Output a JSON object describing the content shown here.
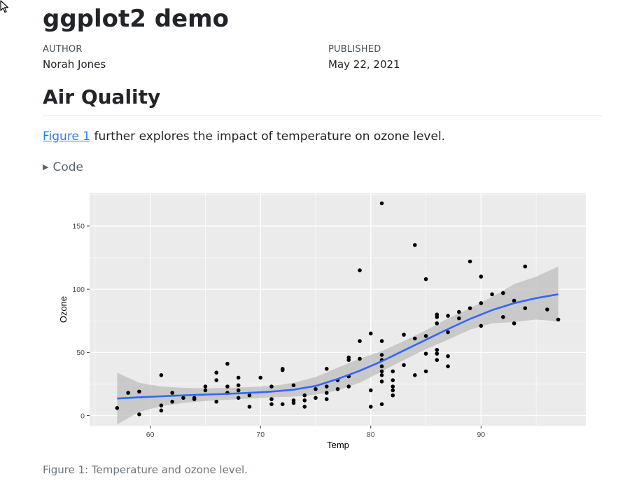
{
  "header": {
    "title": "ggplot2 demo",
    "author_label": "AUTHOR",
    "author": "Norah Jones",
    "published_label": "PUBLISHED",
    "published": "May 22, 2021"
  },
  "section": {
    "heading": "Air Quality",
    "figure_link": "Figure 1",
    "paragraph_rest": " further explores the impact of temperature on ozone level.",
    "code_toggle": "Code"
  },
  "figure": {
    "caption": "Figure 1: Temperature and ozone level."
  },
  "colors": {
    "panel_bg": "#EBEBEB",
    "grid": "#FFFFFF",
    "points": "#000000",
    "smooth_line": "#3366FF",
    "ribbon": "#BDBDBD",
    "link": "#2780E3"
  },
  "chart_data": {
    "type": "scatter",
    "title": "",
    "xlabel": "Temp",
    "ylabel": "Ozone",
    "xlim": [
      54.5,
      99.5
    ],
    "ylim": [
      -8,
      176
    ],
    "xticks": [
      60,
      70,
      80,
      90
    ],
    "yticks": [
      0,
      50,
      100,
      150
    ],
    "grid": true,
    "legend": "none",
    "points": [
      {
        "x": 57,
        "y": 6
      },
      {
        "x": 58,
        "y": 18
      },
      {
        "x": 59,
        "y": 1
      },
      {
        "x": 59,
        "y": 19
      },
      {
        "x": 61,
        "y": 32
      },
      {
        "x": 61,
        "y": 8
      },
      {
        "x": 61,
        "y": 4
      },
      {
        "x": 62,
        "y": 11
      },
      {
        "x": 62,
        "y": 18
      },
      {
        "x": 63,
        "y": 14
      },
      {
        "x": 64,
        "y": 14
      },
      {
        "x": 64,
        "y": 13
      },
      {
        "x": 65,
        "y": 20
      },
      {
        "x": 65,
        "y": 23
      },
      {
        "x": 66,
        "y": 34
      },
      {
        "x": 66,
        "y": 28
      },
      {
        "x": 66,
        "y": 11
      },
      {
        "x": 67,
        "y": 41
      },
      {
        "x": 67,
        "y": 23
      },
      {
        "x": 67,
        "y": 18
      },
      {
        "x": 68,
        "y": 30
      },
      {
        "x": 68,
        "y": 24
      },
      {
        "x": 68,
        "y": 20
      },
      {
        "x": 68,
        "y": 14
      },
      {
        "x": 69,
        "y": 16
      },
      {
        "x": 69,
        "y": 7
      },
      {
        "x": 70,
        "y": 30
      },
      {
        "x": 71,
        "y": 23
      },
      {
        "x": 71,
        "y": 13
      },
      {
        "x": 71,
        "y": 9
      },
      {
        "x": 72,
        "y": 37
      },
      {
        "x": 72,
        "y": 36
      },
      {
        "x": 72,
        "y": 9
      },
      {
        "x": 73,
        "y": 24
      },
      {
        "x": 73,
        "y": 12
      },
      {
        "x": 73,
        "y": 10
      },
      {
        "x": 74,
        "y": 16
      },
      {
        "x": 74,
        "y": 12
      },
      {
        "x": 74,
        "y": 7
      },
      {
        "x": 75,
        "y": 21
      },
      {
        "x": 75,
        "y": 14
      },
      {
        "x": 76,
        "y": 37
      },
      {
        "x": 76,
        "y": 23
      },
      {
        "x": 76,
        "y": 18
      },
      {
        "x": 76,
        "y": 13
      },
      {
        "x": 77,
        "y": 28
      },
      {
        "x": 77,
        "y": 21
      },
      {
        "x": 78,
        "y": 46
      },
      {
        "x": 78,
        "y": 44
      },
      {
        "x": 78,
        "y": 31
      },
      {
        "x": 78,
        "y": 23
      },
      {
        "x": 79,
        "y": 115
      },
      {
        "x": 79,
        "y": 59
      },
      {
        "x": 79,
        "y": 45
      },
      {
        "x": 80,
        "y": 65
      },
      {
        "x": 80,
        "y": 20
      },
      {
        "x": 80,
        "y": 7
      },
      {
        "x": 81,
        "y": 168
      },
      {
        "x": 81,
        "y": 59
      },
      {
        "x": 81,
        "y": 48
      },
      {
        "x": 81,
        "y": 44
      },
      {
        "x": 81,
        "y": 39
      },
      {
        "x": 81,
        "y": 35
      },
      {
        "x": 81,
        "y": 32
      },
      {
        "x": 81,
        "y": 27
      },
      {
        "x": 81,
        "y": 9
      },
      {
        "x": 82,
        "y": 35
      },
      {
        "x": 82,
        "y": 28
      },
      {
        "x": 82,
        "y": 23
      },
      {
        "x": 82,
        "y": 20
      },
      {
        "x": 82,
        "y": 16
      },
      {
        "x": 83,
        "y": 64
      },
      {
        "x": 83,
        "y": 40
      },
      {
        "x": 84,
        "y": 135
      },
      {
        "x": 84,
        "y": 61
      },
      {
        "x": 84,
        "y": 32
      },
      {
        "x": 85,
        "y": 108
      },
      {
        "x": 85,
        "y": 63
      },
      {
        "x": 85,
        "y": 49
      },
      {
        "x": 85,
        "y": 35
      },
      {
        "x": 86,
        "y": 80
      },
      {
        "x": 86,
        "y": 78
      },
      {
        "x": 86,
        "y": 73
      },
      {
        "x": 86,
        "y": 52
      },
      {
        "x": 86,
        "y": 49
      },
      {
        "x": 86,
        "y": 44
      },
      {
        "x": 87,
        "y": 79
      },
      {
        "x": 87,
        "y": 66
      },
      {
        "x": 87,
        "y": 47
      },
      {
        "x": 87,
        "y": 39
      },
      {
        "x": 88,
        "y": 82
      },
      {
        "x": 88,
        "y": 77
      },
      {
        "x": 89,
        "y": 122
      },
      {
        "x": 89,
        "y": 85
      },
      {
        "x": 90,
        "y": 110
      },
      {
        "x": 90,
        "y": 89
      },
      {
        "x": 90,
        "y": 71
      },
      {
        "x": 91,
        "y": 96
      },
      {
        "x": 92,
        "y": 97
      },
      {
        "x": 92,
        "y": 78
      },
      {
        "x": 93,
        "y": 91
      },
      {
        "x": 93,
        "y": 73
      },
      {
        "x": 94,
        "y": 118
      },
      {
        "x": 94,
        "y": 85
      },
      {
        "x": 96,
        "y": 84
      },
      {
        "x": 97,
        "y": 76
      }
    ],
    "smooth": {
      "method": "loess",
      "x": [
        57,
        59,
        61,
        63,
        65,
        67,
        69,
        71,
        73,
        75,
        77,
        79,
        81,
        83,
        85,
        87,
        89,
        91,
        93,
        95,
        97
      ],
      "y": [
        13.5,
        14.5,
        15.3,
        16,
        16.6,
        17.2,
        18,
        19,
        20.5,
        23.5,
        29,
        35.5,
        43,
        51.5,
        60,
        68.5,
        76.5,
        83.5,
        89,
        93,
        96
      ],
      "lower": [
        -7,
        3,
        7.5,
        10,
        11.5,
        12.5,
        13.5,
        14.5,
        15,
        16.5,
        20,
        26,
        35,
        44,
        52.5,
        60,
        68,
        73,
        74,
        76,
        74.5
      ],
      "upper": [
        34,
        26,
        23,
        22,
        21.5,
        22,
        22.5,
        23.5,
        26,
        30.5,
        38,
        45,
        51,
        59,
        67.5,
        77,
        85,
        94,
        104,
        110,
        118
      ]
    }
  }
}
